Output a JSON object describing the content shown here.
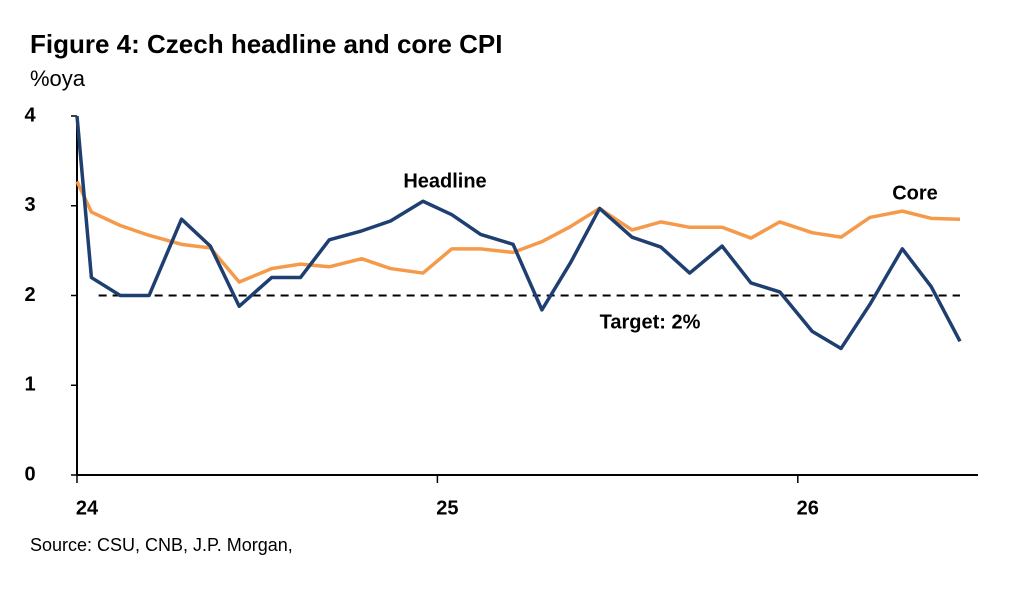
{
  "chart_data": {
    "type": "line",
    "title": "Figure 4: Czech headline and core CPI",
    "subtitle": "%oya",
    "source": "Source: CSU, CNB, J.P. Morgan,",
    "x": [
      24.0,
      24.04,
      24.12,
      24.2,
      24.29,
      24.37,
      24.45,
      24.54,
      24.62,
      24.7,
      24.79,
      24.87,
      24.96,
      25.04,
      25.12,
      25.21,
      25.29,
      25.37,
      25.45,
      25.54,
      25.62,
      25.7,
      25.79,
      25.87,
      25.95,
      26.04,
      26.12,
      26.2,
      26.29,
      26.37,
      26.45
    ],
    "series": [
      {
        "name": "Headline",
        "color": "#1f3f70",
        "values": [
          4.0,
          2.2,
          2.0,
          2.0,
          2.85,
          2.55,
          1.88,
          2.2,
          2.2,
          2.62,
          2.72,
          2.83,
          3.05,
          2.9,
          2.68,
          2.57,
          1.84,
          2.37,
          2.97,
          2.65,
          2.54,
          2.25,
          2.55,
          2.14,
          2.04,
          1.6,
          1.41,
          1.9,
          2.52,
          2.1,
          1.49
        ]
      },
      {
        "name": "Core",
        "color": "#f59a4a",
        "values": [
          3.27,
          2.93,
          2.78,
          2.67,
          2.57,
          2.53,
          2.15,
          2.3,
          2.35,
          2.32,
          2.41,
          2.3,
          2.25,
          2.52,
          2.52,
          2.48,
          2.6,
          2.77,
          2.97,
          2.73,
          2.82,
          2.76,
          2.76,
          2.64,
          2.82,
          2.7,
          2.65,
          2.87,
          2.94,
          2.86,
          2.85
        ]
      }
    ],
    "target": {
      "label": "Target: 2%",
      "value": 2,
      "x": [
        24.06,
        26.45
      ]
    },
    "xlim": [
      24,
      26.5
    ],
    "xticks": [
      24,
      25,
      26
    ],
    "ylim": [
      0,
      4
    ],
    "yticks": [
      0,
      1,
      2,
      3,
      4
    ]
  }
}
